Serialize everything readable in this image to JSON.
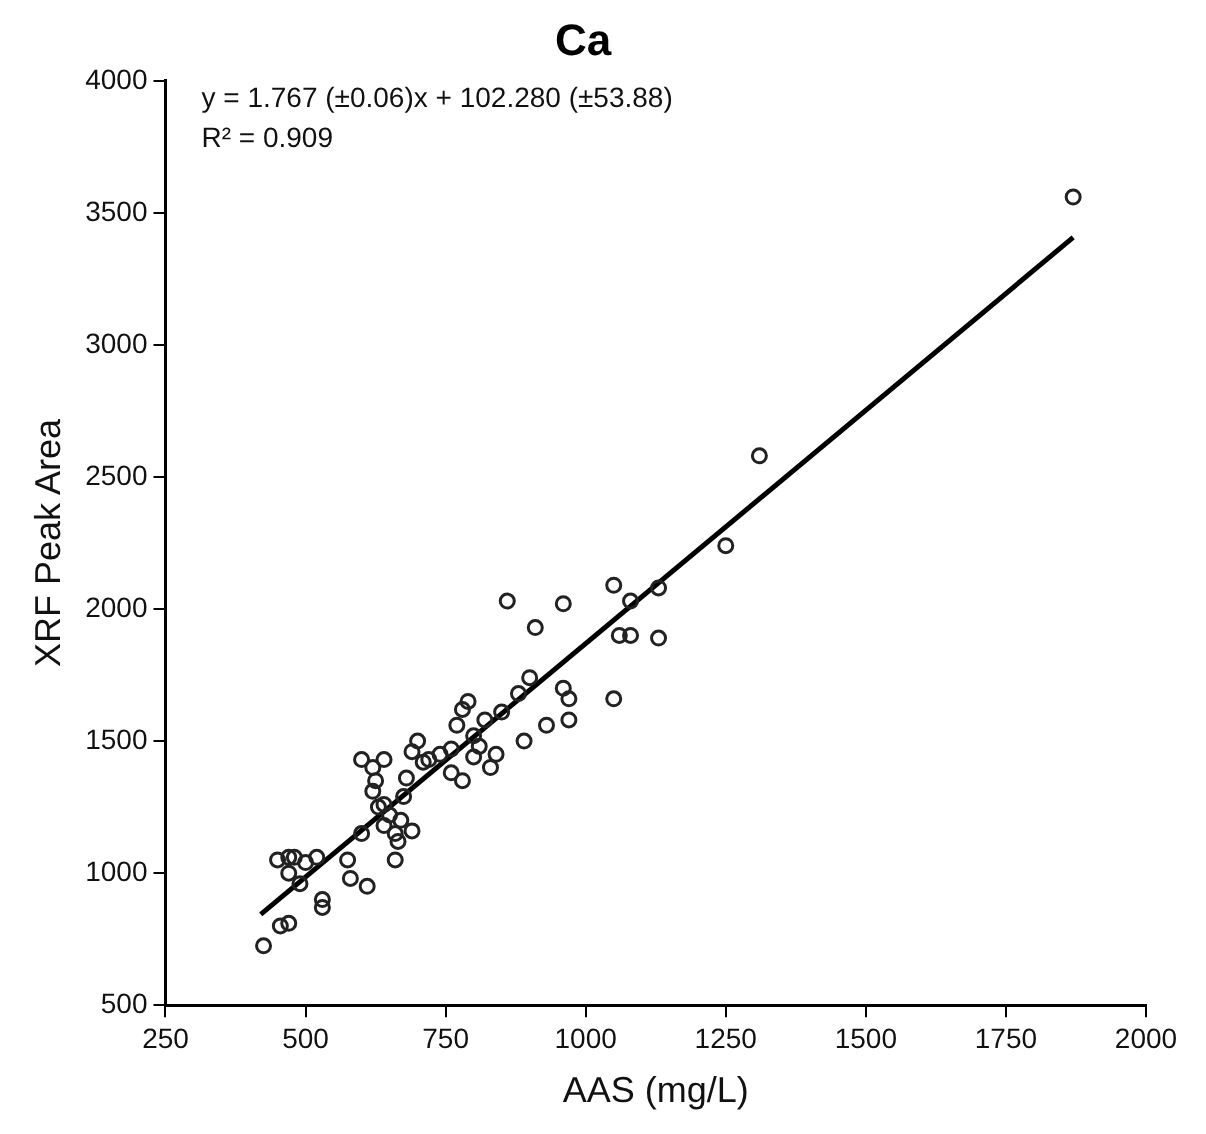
{
  "chart_data": {
    "type": "scatter",
    "title": "Ca",
    "xlabel": "AAS (mg/L)",
    "ylabel": "XRF Peak Area",
    "annotations": [
      "y = 1.767 (±0.06)x + 102.280 (±53.88)",
      "R² = 0.909"
    ],
    "xlim": [
      250,
      2000
    ],
    "xticks": [
      250,
      500,
      750,
      1000,
      1250,
      1500,
      1750,
      2000
    ],
    "ylim": [
      500,
      4000
    ],
    "yticks": [
      500,
      1000,
      1500,
      2000,
      2500,
      3000,
      3500,
      4000
    ],
    "grid": false,
    "legend": false,
    "marker": "circle",
    "series": [
      {
        "color": "#222222",
        "x": [
          425,
          455,
          470,
          450,
          470,
          480,
          490,
          470,
          500,
          520,
          530,
          530,
          575,
          580,
          600,
          610,
          600,
          620,
          625,
          640,
          640,
          650,
          660,
          660,
          665,
          670,
          675,
          680,
          690,
          700,
          640,
          630,
          690,
          710,
          740,
          760,
          770,
          780,
          780,
          790,
          800,
          810,
          820,
          830,
          840,
          850,
          860,
          880,
          890,
          900,
          910,
          930,
          960,
          960,
          970,
          970,
          1050,
          1050,
          1060,
          1080,
          1080,
          1130,
          1130,
          1250,
          1310,
          1870,
          620,
          720,
          760,
          800
        ],
        "values": [
          725,
          800,
          810,
          1050,
          1000,
          1060,
          960,
          1060,
          1040,
          1060,
          900,
          870,
          1050,
          980,
          1150,
          950,
          1430,
          1310,
          1350,
          1430,
          1260,
          1220,
          1050,
          1150,
          1120,
          1200,
          1290,
          1360,
          1460,
          1500,
          1180,
          1250,
          1160,
          1420,
          1450,
          1470,
          1560,
          1620,
          1350,
          1650,
          1440,
          1480,
          1580,
          1400,
          1450,
          1610,
          2030,
          1680,
          1500,
          1740,
          1930,
          1560,
          2020,
          1700,
          1660,
          1580,
          2090,
          1660,
          1900,
          2030,
          1900,
          2080,
          1890,
          2240,
          2580,
          3560,
          1400,
          1430,
          1380,
          1520
        ]
      },
      {
        "type": "line",
        "color": "#000000",
        "marker": "none",
        "line_style": "solid",
        "x": [
          420,
          1870
        ],
        "values": [
          844,
          3407
        ]
      }
    ]
  }
}
